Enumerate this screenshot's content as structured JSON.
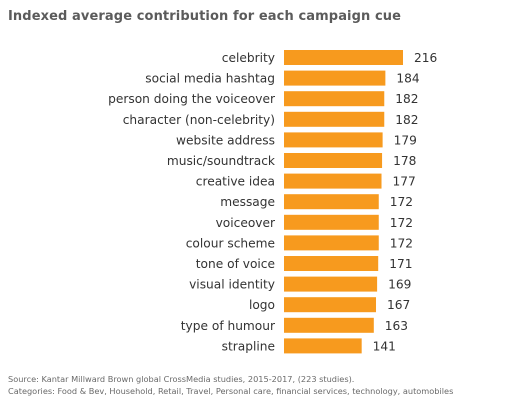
{
  "chart_data": {
    "type": "bar",
    "orientation": "horizontal",
    "title": "Indexed average contribution for each campaign cue",
    "categories": [
      "celebrity",
      "social media hashtag",
      "person doing the voiceover",
      "character (non-celebrity)",
      "website address",
      "music/soundtrack",
      "creative idea",
      "message",
      "voiceover",
      "colour scheme",
      "tone of voice",
      "visual identity",
      "logo",
      "type of humour",
      "strapline"
    ],
    "values": [
      216,
      184,
      182,
      182,
      179,
      178,
      177,
      172,
      172,
      172,
      171,
      169,
      167,
      163,
      141
    ],
    "xlabel": "",
    "ylabel": "",
    "xlim": [
      0,
      216
    ],
    "grid": false,
    "legend": "none",
    "bar_color": "#F79A1E",
    "data_labels": true
  },
  "source": {
    "line1": "Source: Kantar Millward Brown global CrossMedia studies, 2015-2017,  (223 studies).",
    "line2": "Categories: Food & Bev, Household, Retail, Travel, Personal care, financial services, technology, automobiles"
  }
}
